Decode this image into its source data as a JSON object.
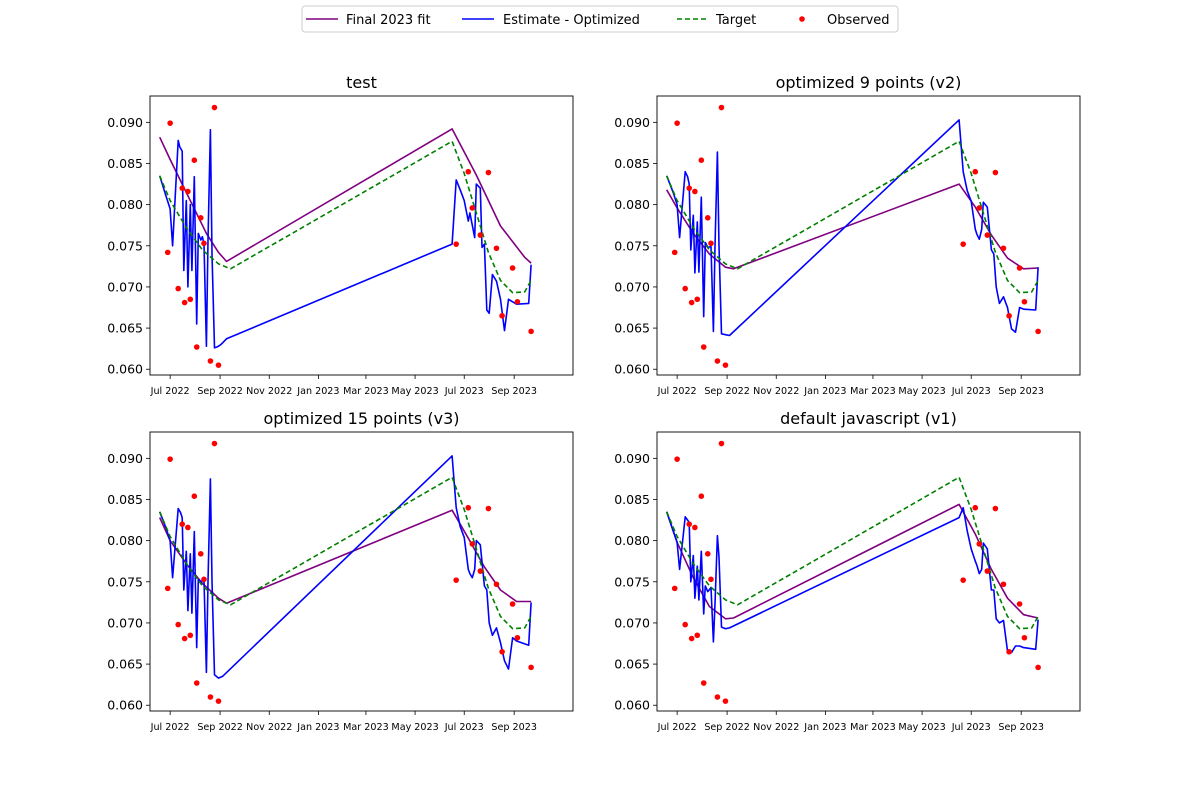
{
  "legend": {
    "entries": [
      {
        "label": "Final 2023 fit",
        "color": "#800080",
        "style": "solid"
      },
      {
        "label": "Estimate - Optimized",
        "color": "#0000ff",
        "style": "solid"
      },
      {
        "label": "Target",
        "color": "#008000",
        "style": "dashed"
      },
      {
        "label": "Observed",
        "color": "#ff0000",
        "style": "marker"
      }
    ]
  },
  "x_ticks": [
    "Jul 2022",
    "Sep 2022",
    "Nov 2022",
    "Jan 2023",
    "Mar 2023",
    "May 2023",
    "Jul 2023",
    "Sep 2023"
  ],
  "x_tick_days": [
    0,
    62,
    123,
    184,
    243,
    304,
    365,
    427
  ],
  "y_ticks": [
    "0.060",
    "0.065",
    "0.070",
    "0.075",
    "0.080",
    "0.085",
    "0.090"
  ],
  "chart_data": [
    {
      "type": "line",
      "title": "test",
      "x_unit": "days since 2022-07-01",
      "xlim": [
        -25,
        500
      ],
      "ylim": [
        0.0593,
        0.0932
      ],
      "series": [
        {
          "name": "Final 2023 fit",
          "color": "#800080",
          "style": "solid",
          "x": [
            -13,
            0,
            15,
            30,
            45,
            60,
            70,
            350,
            380,
            410,
            440,
            448
          ],
          "y": [
            0.0882,
            0.0855,
            0.0825,
            0.0795,
            0.0765,
            0.0742,
            0.0731,
            0.0892,
            0.0836,
            0.0774,
            0.0736,
            0.0729
          ]
        },
        {
          "name": "Estimate - Optimized",
          "color": "#0000ff",
          "style": "solid",
          "x": [
            -13,
            -5,
            0,
            3,
            10,
            12,
            15,
            17,
            20,
            22,
            25,
            27,
            30,
            33,
            35,
            38,
            40,
            42,
            45,
            47,
            50,
            52,
            55,
            58,
            60,
            63,
            65,
            67,
            70,
            350,
            355,
            360,
            365,
            370,
            372,
            375,
            378,
            380,
            385,
            387,
            390,
            393,
            396,
            400,
            405,
            410,
            415,
            420,
            425,
            430,
            445,
            448
          ],
          "y": [
            0.0835,
            0.081,
            0.0795,
            0.075,
            0.0878,
            0.087,
            0.0865,
            0.072,
            0.0805,
            0.07,
            0.08,
            0.072,
            0.0834,
            0.0655,
            0.0765,
            0.0757,
            0.0761,
            0.0752,
            0.0628,
            0.0757,
            0.0891,
            0.074,
            0.0626,
            0.0627,
            0.0628,
            0.063,
            0.0632,
            0.0634,
            0.0637,
            0.0752,
            0.083,
            0.0818,
            0.0805,
            0.078,
            0.079,
            0.0775,
            0.076,
            0.0825,
            0.082,
            0.0748,
            0.0752,
            0.0672,
            0.0668,
            0.0715,
            0.0707,
            0.0685,
            0.0647,
            0.0685,
            0.0682,
            0.0679,
            0.068,
            0.0727
          ]
        },
        {
          "name": "Target",
          "color": "#008000",
          "style": "dashed",
          "x": [
            -13,
            0,
            20,
            40,
            60,
            75,
            350,
            365,
            380,
            395,
            410,
            425,
            440,
            448
          ],
          "y": [
            0.0835,
            0.0805,
            0.0772,
            0.0745,
            0.0728,
            0.0722,
            0.0877,
            0.0838,
            0.079,
            0.0742,
            0.0708,
            0.0693,
            0.0694,
            0.0708
          ]
        },
        {
          "name": "Observed",
          "color": "#ff0000",
          "style": "marker",
          "x": [
            -3,
            0,
            10,
            15,
            18,
            22,
            25,
            30,
            33,
            38,
            42,
            50,
            55,
            60,
            355,
            370,
            375,
            385,
            395,
            405,
            412,
            425,
            431,
            448
          ],
          "y": [
            0.0742,
            0.0899,
            0.0698,
            0.082,
            0.0681,
            0.0816,
            0.0685,
            0.0854,
            0.0627,
            0.0784,
            0.0753,
            0.061,
            0.0918,
            0.0605,
            0.0752,
            0.084,
            0.0796,
            0.0763,
            0.0839,
            0.0747,
            0.0665,
            0.0723,
            0.0682,
            0.0646
          ]
        }
      ]
    },
    {
      "type": "line",
      "title": "optimized 9 points (v2)",
      "x_unit": "days since 2022-07-01",
      "xlim": [
        -25,
        500
      ],
      "ylim": [
        0.0593,
        0.0932
      ],
      "series": [
        {
          "name": "Final 2023 fit",
          "color": "#800080",
          "style": "solid",
          "x": [
            -13,
            0,
            20,
            40,
            60,
            70,
            350,
            370,
            390,
            410,
            430,
            448
          ],
          "y": [
            0.0818,
            0.0796,
            0.0765,
            0.074,
            0.0724,
            0.0722,
            0.0825,
            0.0797,
            0.0763,
            0.0735,
            0.0722,
            0.0723
          ]
        },
        {
          "name": "Estimate - Optimized",
          "color": "#0000ff",
          "style": "solid",
          "x": [
            -13,
            -5,
            0,
            3,
            10,
            13,
            15,
            17,
            20,
            22,
            25,
            27,
            30,
            33,
            35,
            38,
            42,
            45,
            47,
            50,
            52,
            55,
            60,
            65,
            350,
            355,
            360,
            365,
            370,
            372,
            375,
            378,
            380,
            385,
            390,
            393,
            396,
            400,
            405,
            410,
            415,
            420,
            425,
            430,
            445,
            448
          ],
          "y": [
            0.0835,
            0.0815,
            0.08,
            0.076,
            0.084,
            0.0834,
            0.0825,
            0.0745,
            0.0787,
            0.0717,
            0.0779,
            0.0718,
            0.0809,
            0.0664,
            0.0754,
            0.0748,
            0.0749,
            0.0646,
            0.0749,
            0.0864,
            0.075,
            0.0643,
            0.0642,
            0.0641,
            0.0903,
            0.084,
            0.0817,
            0.0804,
            0.077,
            0.0764,
            0.0758,
            0.077,
            0.0803,
            0.0797,
            0.0745,
            0.074,
            0.07,
            0.068,
            0.0688,
            0.0675,
            0.0649,
            0.0645,
            0.0675,
            0.0673,
            0.0672,
            0.0724
          ]
        },
        {
          "name": "Target",
          "color": "#008000",
          "style": "dashed",
          "x": [
            -13,
            0,
            20,
            40,
            60,
            75,
            350,
            365,
            380,
            395,
            410,
            425,
            440,
            448
          ],
          "y": [
            0.0835,
            0.0805,
            0.0772,
            0.0745,
            0.0728,
            0.0722,
            0.0877,
            0.0838,
            0.079,
            0.0742,
            0.0708,
            0.0693,
            0.0694,
            0.0708
          ]
        },
        {
          "name": "Observed",
          "color": "#ff0000",
          "style": "marker",
          "x": [
            -3,
            0,
            10,
            15,
            18,
            22,
            25,
            30,
            33,
            38,
            42,
            50,
            55,
            60,
            355,
            370,
            375,
            385,
            395,
            405,
            412,
            425,
            431,
            448
          ],
          "y": [
            0.0742,
            0.0899,
            0.0698,
            0.082,
            0.0681,
            0.0816,
            0.0685,
            0.0854,
            0.0627,
            0.0784,
            0.0753,
            0.061,
            0.0918,
            0.0605,
            0.0752,
            0.084,
            0.0796,
            0.0763,
            0.0839,
            0.0747,
            0.0665,
            0.0723,
            0.0682,
            0.0646
          ]
        }
      ]
    },
    {
      "type": "line",
      "title": "optimized 15 points (v3)",
      "x_unit": "days since 2022-07-01",
      "xlim": [
        -25,
        500
      ],
      "ylim": [
        0.0593,
        0.0932
      ],
      "series": [
        {
          "name": "Final 2023 fit",
          "color": "#800080",
          "style": "solid",
          "x": [
            -13,
            0,
            20,
            40,
            60,
            70,
            350,
            370,
            390,
            410,
            430,
            448
          ],
          "y": [
            0.0828,
            0.08,
            0.0772,
            0.0748,
            0.073,
            0.0724,
            0.0837,
            0.0803,
            0.0768,
            0.074,
            0.0726,
            0.0726
          ]
        },
        {
          "name": "Estimate - Optimized",
          "color": "#0000ff",
          "style": "solid",
          "x": [
            -13,
            -5,
            0,
            3,
            10,
            13,
            15,
            17,
            20,
            22,
            25,
            27,
            30,
            33,
            35,
            38,
            42,
            45,
            47,
            50,
            52,
            55,
            60,
            65,
            350,
            355,
            360,
            365,
            370,
            372,
            375,
            378,
            380,
            385,
            390,
            393,
            396,
            400,
            405,
            410,
            415,
            420,
            425,
            430,
            445,
            448
          ],
          "y": [
            0.0835,
            0.0815,
            0.08,
            0.0755,
            0.0839,
            0.0834,
            0.0828,
            0.074,
            0.0787,
            0.0715,
            0.0784,
            0.0712,
            0.0811,
            0.067,
            0.0753,
            0.075,
            0.0752,
            0.064,
            0.075,
            0.0875,
            0.0751,
            0.0637,
            0.0633,
            0.0635,
            0.0903,
            0.084,
            0.0817,
            0.0804,
            0.0765,
            0.076,
            0.0755,
            0.0765,
            0.08,
            0.0795,
            0.0745,
            0.074,
            0.07,
            0.0685,
            0.0694,
            0.0676,
            0.0654,
            0.0644,
            0.0682,
            0.0678,
            0.0673,
            0.0725
          ]
        },
        {
          "name": "Target",
          "color": "#008000",
          "style": "dashed",
          "x": [
            -13,
            0,
            20,
            40,
            60,
            75,
            350,
            365,
            380,
            395,
            410,
            425,
            440,
            448
          ],
          "y": [
            0.0835,
            0.0805,
            0.0772,
            0.0745,
            0.0728,
            0.0722,
            0.0877,
            0.0838,
            0.079,
            0.0742,
            0.0708,
            0.0693,
            0.0694,
            0.0708
          ]
        },
        {
          "name": "Observed",
          "color": "#ff0000",
          "style": "marker",
          "x": [
            -3,
            0,
            10,
            15,
            18,
            22,
            25,
            30,
            33,
            38,
            42,
            50,
            55,
            60,
            355,
            370,
            375,
            385,
            395,
            405,
            412,
            425,
            431,
            448
          ],
          "y": [
            0.0742,
            0.0899,
            0.0698,
            0.082,
            0.0681,
            0.0816,
            0.0685,
            0.0854,
            0.0627,
            0.0784,
            0.0753,
            0.061,
            0.0918,
            0.0605,
            0.0752,
            0.084,
            0.0796,
            0.0763,
            0.0839,
            0.0747,
            0.0665,
            0.0723,
            0.0682,
            0.0646
          ]
        }
      ]
    },
    {
      "type": "line",
      "title": "default javascript (v1)",
      "x_unit": "days since 2022-07-01",
      "xlim": [
        -25,
        500
      ],
      "ylim": [
        0.0593,
        0.0932
      ],
      "series": [
        {
          "name": "Final 2023 fit",
          "color": "#800080",
          "style": "solid",
          "x": [
            -13,
            0,
            20,
            40,
            60,
            70,
            350,
            370,
            390,
            410,
            430,
            448
          ],
          "y": [
            0.0835,
            0.0798,
            0.0755,
            0.072,
            0.0705,
            0.0706,
            0.0844,
            0.0808,
            0.0765,
            0.073,
            0.071,
            0.0706
          ]
        },
        {
          "name": "Estimate - Optimized",
          "color": "#0000ff",
          "style": "solid",
          "x": [
            -13,
            -5,
            0,
            3,
            10,
            13,
            15,
            17,
            20,
            22,
            25,
            27,
            30,
            33,
            35,
            38,
            42,
            45,
            47,
            50,
            52,
            55,
            60,
            65,
            350,
            355,
            360,
            365,
            370,
            372,
            375,
            378,
            380,
            385,
            390,
            393,
            396,
            400,
            405,
            410,
            415,
            420,
            425,
            430,
            445,
            448
          ],
          "y": [
            0.0835,
            0.0812,
            0.0798,
            0.0765,
            0.0829,
            0.0825,
            0.0822,
            0.075,
            0.0782,
            0.073,
            0.0769,
            0.0728,
            0.0787,
            0.0711,
            0.0745,
            0.0738,
            0.0743,
            0.0677,
            0.0723,
            0.0806,
            0.078,
            0.0695,
            0.0693,
            0.0694,
            0.0828,
            0.084,
            0.0812,
            0.079,
            0.0775,
            0.077,
            0.076,
            0.0765,
            0.0797,
            0.079,
            0.074,
            0.074,
            0.0705,
            0.07,
            0.0703,
            0.0666,
            0.0664,
            0.0672,
            0.0672,
            0.067,
            0.0668,
            0.0704
          ]
        },
        {
          "name": "Target",
          "color": "#008000",
          "style": "dashed",
          "x": [
            -13,
            0,
            20,
            40,
            60,
            75,
            350,
            365,
            380,
            395,
            410,
            425,
            440,
            448
          ],
          "y": [
            0.0835,
            0.0805,
            0.0772,
            0.0745,
            0.0728,
            0.0722,
            0.0877,
            0.0838,
            0.079,
            0.0742,
            0.0708,
            0.0693,
            0.0694,
            0.0708
          ]
        },
        {
          "name": "Observed",
          "color": "#ff0000",
          "style": "marker",
          "x": [
            -3,
            0,
            10,
            15,
            18,
            22,
            25,
            30,
            33,
            38,
            42,
            50,
            55,
            60,
            355,
            370,
            375,
            385,
            395,
            405,
            412,
            425,
            431,
            448
          ],
          "y": [
            0.0742,
            0.0899,
            0.0698,
            0.082,
            0.0681,
            0.0816,
            0.0685,
            0.0854,
            0.0627,
            0.0784,
            0.0753,
            0.061,
            0.0918,
            0.0605,
            0.0752,
            0.084,
            0.0796,
            0.0763,
            0.0839,
            0.0747,
            0.0665,
            0.0723,
            0.0682,
            0.0646
          ]
        }
      ]
    }
  ]
}
